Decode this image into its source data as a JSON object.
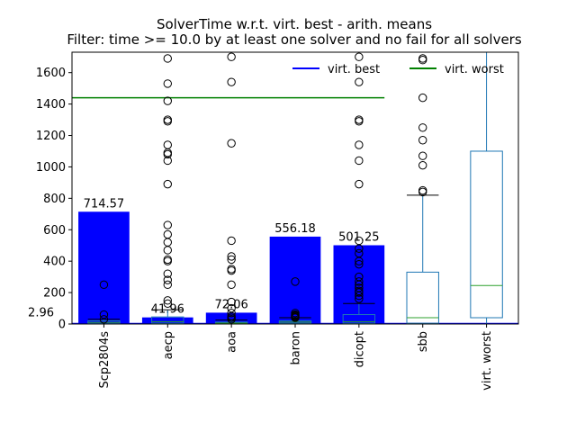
{
  "chart_data": {
    "type": "bar",
    "title": "SolverTime w.r.t. virt. best - arith. means",
    "subtitle": "Filter: time >= 10.0 by at least one solver and no fail for all solvers",
    "xlabel": "",
    "ylabel": "",
    "ylim": [
      0,
      1730
    ],
    "yticks": [
      0,
      200,
      400,
      600,
      800,
      1000,
      1200,
      1400,
      1600
    ],
    "categories": [
      "Scp2804s",
      "aecp",
      "aoa",
      "baron",
      "dicopt",
      "sbb",
      "virt. worst"
    ],
    "bars": [
      {
        "category": "Scp2804s",
        "value": 714.57,
        "label": "714.57"
      },
      {
        "category": "aecp",
        "value": 41.96,
        "label": "41.96"
      },
      {
        "category": "aoa",
        "value": 72.06,
        "label": "72.06"
      },
      {
        "category": "baron",
        "value": 556.18,
        "label": "556.18"
      },
      {
        "category": "dicopt",
        "value": 501.25,
        "label": "501.25"
      }
    ],
    "extra_label": {
      "text": "2.96",
      "value": 2.96
    },
    "reference_lines": [
      {
        "name": "virt. best",
        "value": 2.96,
        "color": "#0000ff"
      },
      {
        "name": "virt. worst",
        "value": 1440,
        "color": "#008000"
      }
    ],
    "boxplots": [
      {
        "category": "Scp2804s",
        "q1": 3,
        "median": 10,
        "q3": 20,
        "whisker_low": 0,
        "whisker_high": 30,
        "outliers": [
          250,
          60,
          30
        ]
      },
      {
        "category": "aecp",
        "q1": 5,
        "median": 15,
        "q3": 45,
        "whisker_low": 0,
        "whisker_high": 90,
        "outliers": [
          1690,
          1530,
          1420,
          1300,
          1290,
          1140,
          1090,
          1080,
          1040,
          890,
          630,
          570,
          520,
          470,
          410,
          400,
          320,
          280,
          250,
          150,
          130
        ]
      },
      {
        "category": "aoa",
        "q1": 2,
        "median": 6,
        "q3": 12,
        "whisker_low": 0,
        "whisker_high": 25,
        "outliers": [
          1700,
          1540,
          1150,
          530,
          430,
          410,
          350,
          340,
          250,
          140,
          100,
          70,
          50,
          40,
          30
        ]
      },
      {
        "category": "baron",
        "q1": 5,
        "median": 12,
        "q3": 20,
        "whisker_low": 0,
        "whisker_high": 40,
        "outliers": [
          270,
          70,
          60,
          55,
          50,
          45,
          40
        ]
      },
      {
        "category": "dicopt",
        "q1": 5,
        "median": 15,
        "q3": 60,
        "whisker_low": 0,
        "whisker_high": 130,
        "outliers": [
          1700,
          1540,
          1300,
          1290,
          1140,
          1040,
          890,
          530,
          480,
          450,
          400,
          380,
          300,
          270,
          250,
          230,
          210,
          200,
          180,
          160
        ]
      },
      {
        "category": "sbb",
        "q1": 5,
        "median": 40,
        "q3": 330,
        "whisker_low": 0,
        "whisker_high": 820,
        "outliers": [
          1690,
          1680,
          1440,
          1250,
          1170,
          1070,
          1010,
          850,
          840
        ]
      },
      {
        "category": "virt. worst",
        "q1": 40,
        "median": 245,
        "q3": 1100,
        "whisker_low": 0,
        "whisker_high": 1730,
        "outliers": []
      }
    ],
    "legend": {
      "placement": "top-right",
      "entries": [
        "virt. best",
        "virt. worst"
      ]
    },
    "grid": false,
    "colors": {
      "bar": "#0000ff",
      "box": "#1f77b4",
      "median": "#2ca02c",
      "virt_best": "#0000ff",
      "virt_worst": "#008000"
    }
  }
}
